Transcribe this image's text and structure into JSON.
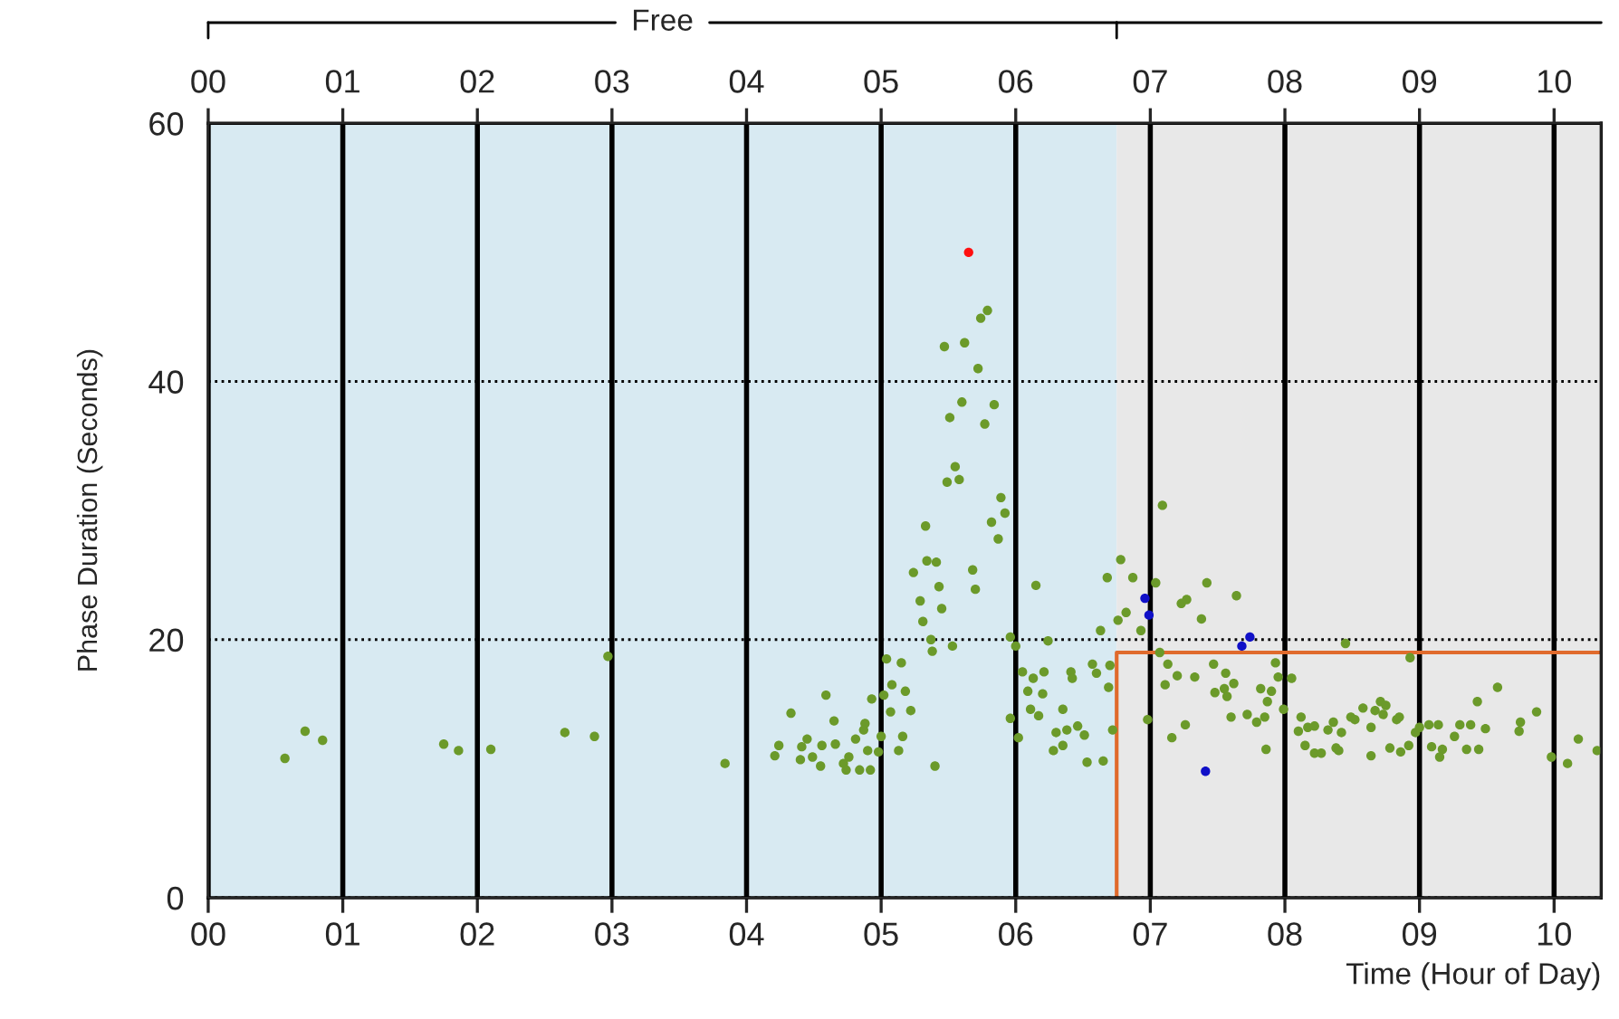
{
  "chart_data": {
    "type": "scatter",
    "xlabel": "Time (Hour of Day)",
    "ylabel": "Phase Duration (Seconds)",
    "xlim": [
      0,
      10.35
    ],
    "ylim": [
      0,
      60
    ],
    "xticks": [
      {
        "value": 0,
        "label": "00"
      },
      {
        "value": 1,
        "label": "01"
      },
      {
        "value": 2,
        "label": "02"
      },
      {
        "value": 3,
        "label": "03"
      },
      {
        "value": 4,
        "label": "04"
      },
      {
        "value": 5,
        "label": "05"
      },
      {
        "value": 6,
        "label": "06"
      },
      {
        "value": 7,
        "label": "07"
      },
      {
        "value": 8,
        "label": "08"
      },
      {
        "value": 9,
        "label": "09"
      },
      {
        "value": 10,
        "label": "10"
      }
    ],
    "x2lim": [
      0,
      10.35
    ],
    "x2ticks": [
      {
        "value": 0,
        "label": "00"
      },
      {
        "value": 1,
        "label": "01"
      },
      {
        "value": 2,
        "label": "02"
      },
      {
        "value": 3,
        "label": "03"
      },
      {
        "value": 4,
        "label": "04"
      },
      {
        "value": 5,
        "label": "05"
      },
      {
        "value": 6,
        "label": "06"
      },
      {
        "value": 7,
        "label": "07"
      },
      {
        "value": 8,
        "label": "08"
      },
      {
        "value": 9,
        "label": "09"
      },
      {
        "value": 10,
        "label": "10"
      }
    ],
    "yticks": [
      0,
      20,
      40,
      60
    ],
    "grid": true,
    "marker": "circle",
    "annotations": [
      "Free"
    ],
    "bands": [
      {
        "axis": "x",
        "from": 0,
        "to": 6.75,
        "color": "#d8eaf2"
      },
      {
        "axis": "x",
        "from": 6.75,
        "to": 10.35,
        "color": "#e8e8e8"
      }
    ],
    "series": [
      {
        "type": "line",
        "color": "#e06a2c",
        "marker": "none",
        "x": [
          6.75,
          6.75,
          10.35
        ],
        "values": [
          0,
          19,
          19
        ]
      },
      {
        "color": "#6b9a2a",
        "x": [
          0.57,
          0.72,
          0.85,
          1.75,
          1.86,
          2.1,
          2.65,
          2.87,
          2.97,
          3.84,
          5.79,
          5.74,
          5.47,
          5.62,
          5.72,
          5.6,
          5.51,
          5.84,
          5.77,
          5.55,
          5.49,
          5.58,
          5.89,
          5.92,
          5.82,
          5.87,
          5.33,
          5.34,
          5.41,
          5.24,
          5.68,
          5.7,
          5.43,
          5.29,
          5.45,
          5.31,
          6.15,
          5.37,
          5.53,
          5.38,
          5.96,
          6.0,
          6.24,
          5.04,
          5.15,
          5.08,
          5.18,
          4.93,
          5.02,
          4.59,
          4.33,
          4.65,
          5.07,
          5.22,
          4.88,
          4.87,
          5.16,
          5.0,
          4.81,
          4.24,
          4.45,
          4.41,
          4.56,
          4.66,
          4.21,
          4.49,
          4.4,
          4.55,
          4.76,
          4.9,
          4.98,
          4.72,
          4.84,
          4.74,
          4.92,
          5.13,
          5.4,
          5.96,
          6.02,
          6.05,
          6.13,
          6.21,
          6.09,
          6.2,
          6.11,
          6.17,
          6.35,
          6.41,
          6.42,
          6.57,
          6.6,
          6.7,
          6.69,
          6.3,
          6.38,
          6.35,
          6.28,
          6.46,
          6.51,
          6.53,
          6.65,
          6.72,
          6.63,
          6.76,
          6.82,
          6.68,
          6.78,
          6.87,
          7.09,
          7.04,
          7.42,
          7.64,
          7.23,
          7.27,
          7.38,
          6.93,
          8.45,
          8.93,
          7.07,
          7.13,
          7.47,
          7.93,
          7.2,
          7.33,
          7.56,
          7.62,
          7.55,
          7.11,
          7.48,
          7.57,
          7.82,
          7.9,
          7.95,
          8.05,
          7.87,
          7.99,
          6.98,
          7.16,
          7.26,
          7.6,
          7.72,
          7.79,
          7.85,
          7.86,
          8.12,
          8.1,
          8.17,
          8.22,
          8.15,
          8.22,
          8.27,
          8.38,
          8.4,
          8.32,
          8.36,
          8.42,
          8.49,
          8.52,
          8.58,
          8.64,
          8.67,
          8.71,
          8.75,
          8.73,
          8.83,
          8.85,
          8.64,
          8.78,
          8.86,
          8.92,
          8.97,
          9.0,
          9.07,
          9.14,
          9.09,
          9.17,
          9.15,
          9.26,
          9.3,
          9.38,
          9.49,
          9.35,
          9.44,
          9.43,
          9.58,
          9.75,
          9.74,
          9.87,
          9.98,
          10.1,
          10.18,
          10.32
        ],
        "values": [
          10.8,
          12.9,
          12.2,
          11.9,
          11.4,
          11.5,
          12.8,
          12.5,
          18.7,
          10.4,
          45.5,
          44.9,
          42.7,
          43.0,
          41.0,
          38.4,
          37.2,
          38.2,
          36.7,
          33.4,
          32.2,
          32.4,
          31.0,
          29.8,
          29.1,
          27.8,
          28.8,
          26.1,
          26.0,
          25.2,
          25.4,
          23.9,
          24.1,
          23.0,
          22.4,
          21.4,
          24.2,
          20.0,
          19.5,
          19.1,
          20.2,
          19.5,
          19.9,
          18.5,
          18.2,
          16.5,
          16.0,
          15.4,
          15.7,
          15.7,
          14.3,
          13.7,
          14.4,
          14.5,
          13.5,
          13.0,
          12.5,
          12.5,
          12.3,
          11.8,
          12.3,
          11.7,
          11.8,
          11.9,
          11.0,
          10.9,
          10.7,
          10.2,
          10.9,
          11.4,
          11.3,
          10.4,
          9.9,
          9.9,
          9.9,
          11.4,
          10.2,
          13.9,
          12.4,
          17.5,
          17.0,
          17.5,
          16.0,
          15.8,
          14.6,
          14.1,
          14.6,
          17.5,
          17.0,
          18.1,
          17.4,
          18.0,
          16.3,
          12.8,
          13.0,
          11.8,
          11.4,
          13.3,
          12.6,
          10.5,
          10.6,
          13.0,
          20.7,
          21.5,
          22.1,
          24.8,
          26.2,
          24.8,
          30.4,
          24.4,
          24.4,
          23.4,
          22.8,
          23.1,
          21.6,
          20.7,
          19.7,
          18.6,
          19.0,
          18.1,
          18.1,
          18.2,
          17.2,
          17.1,
          17.4,
          16.6,
          16.2,
          16.5,
          15.9,
          15.6,
          16.2,
          16.0,
          17.1,
          17.0,
          15.2,
          14.6,
          13.8,
          12.4,
          13.4,
          14.0,
          14.2,
          13.6,
          14.0,
          11.5,
          14.0,
          12.9,
          13.2,
          13.3,
          11.8,
          11.2,
          11.2,
          11.6,
          11.4,
          13.0,
          13.6,
          12.8,
          14.0,
          13.8,
          14.7,
          13.2,
          14.5,
          15.2,
          14.9,
          14.2,
          13.8,
          14.0,
          11.0,
          11.6,
          11.3,
          11.8,
          12.8,
          13.2,
          13.4,
          13.4,
          11.7,
          11.5,
          10.9,
          12.5,
          13.4,
          13.4,
          13.1,
          11.5,
          11.5,
          15.2,
          16.3,
          13.6,
          12.9,
          14.4,
          10.9,
          10.4,
          12.3,
          11.4
        ]
      },
      {
        "color": "#1010c8",
        "x": [
          6.96,
          6.99,
          7.68,
          7.74,
          7.41
        ],
        "values": [
          23.2,
          21.9,
          19.5,
          20.2,
          9.8
        ]
      },
      {
        "color": "#ff1010",
        "x": [
          5.65
        ],
        "values": [
          50.0
        ]
      }
    ]
  }
}
